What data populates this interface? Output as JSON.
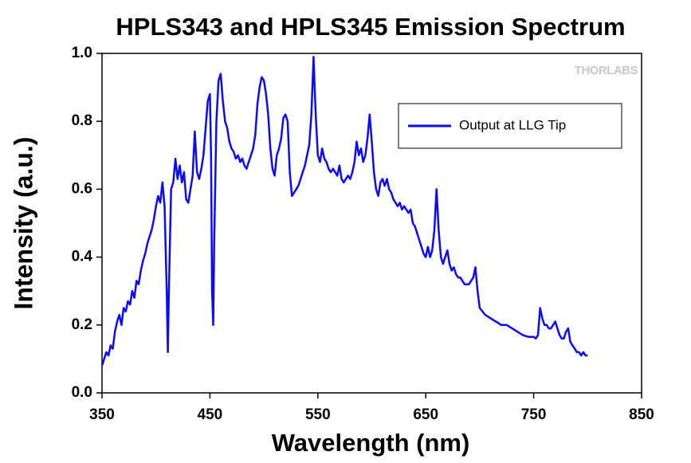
{
  "chart_data": {
    "type": "line",
    "title": "HPLS343 and HPLS345 Emission Spectrum",
    "x_label": "Wavelength (nm)",
    "y_label": "Intensity (a.u.)",
    "annotation": "THORLABS",
    "legend_position": "upper right",
    "xlim": [
      350,
      850
    ],
    "xticks": [
      350,
      450,
      550,
      650,
      750,
      850
    ],
    "ylim": [
      0,
      1
    ],
    "yticks": [
      {
        "value": 0,
        "label": "0.0"
      },
      0.2,
      0.4,
      0.6,
      0.8,
      {
        "value": 1,
        "label": "1.0"
      }
    ],
    "x": [
      350,
      352,
      354,
      356,
      358,
      360,
      362,
      364,
      366,
      368,
      370,
      372,
      374,
      376,
      378,
      380,
      382,
      384,
      386,
      388,
      390,
      392,
      394,
      396,
      398,
      400,
      402,
      404,
      406,
      408,
      410,
      411,
      412,
      414,
      416,
      418,
      420,
      422,
      424,
      426,
      428,
      430,
      432,
      434,
      436,
      438,
      440,
      442,
      444,
      446,
      448,
      450,
      451,
      452,
      453,
      454,
      456,
      458,
      460,
      462,
      464,
      466,
      468,
      470,
      472,
      474,
      476,
      478,
      480,
      482,
      484,
      486,
      488,
      490,
      492,
      494,
      496,
      498,
      500,
      502,
      504,
      506,
      508,
      510,
      512,
      514,
      516,
      518,
      520,
      522,
      524,
      526,
      528,
      530,
      532,
      534,
      536,
      538,
      540,
      542,
      544,
      546,
      548,
      550,
      552,
      554,
      556,
      558,
      560,
      562,
      564,
      566,
      568,
      570,
      572,
      574,
      576,
      578,
      580,
      582,
      584,
      586,
      588,
      590,
      592,
      594,
      596,
      598,
      600,
      602,
      604,
      606,
      608,
      610,
      612,
      614,
      616,
      618,
      620,
      622,
      624,
      626,
      628,
      630,
      632,
      634,
      636,
      638,
      640,
      642,
      644,
      646,
      648,
      650,
      652,
      654,
      656,
      658,
      660,
      662,
      664,
      666,
      668,
      670,
      672,
      674,
      676,
      678,
      680,
      682,
      684,
      686,
      688,
      690,
      692,
      694,
      696,
      698,
      700,
      705,
      710,
      715,
      720,
      725,
      730,
      735,
      740,
      745,
      750,
      752,
      754,
      756,
      758,
      760,
      762,
      764,
      766,
      768,
      770,
      772,
      774,
      776,
      778,
      780,
      782,
      784,
      786,
      788,
      790,
      792,
      794,
      796,
      798,
      800
    ],
    "series": [
      {
        "name": "Output at LLG Tip",
        "color": "#0a0aff",
        "values": [
          0.08,
          0.1,
          0.12,
          0.11,
          0.14,
          0.13,
          0.18,
          0.21,
          0.23,
          0.2,
          0.25,
          0.24,
          0.27,
          0.26,
          0.3,
          0.28,
          0.33,
          0.32,
          0.36,
          0.39,
          0.41,
          0.44,
          0.46,
          0.48,
          0.51,
          0.55,
          0.58,
          0.56,
          0.62,
          0.55,
          0.3,
          0.12,
          0.3,
          0.6,
          0.62,
          0.69,
          0.63,
          0.67,
          0.62,
          0.65,
          0.57,
          0.56,
          0.6,
          0.64,
          0.77,
          0.65,
          0.63,
          0.66,
          0.7,
          0.78,
          0.86,
          0.88,
          0.7,
          0.3,
          0.2,
          0.45,
          0.8,
          0.92,
          0.94,
          0.86,
          0.8,
          0.78,
          0.74,
          0.72,
          0.71,
          0.69,
          0.7,
          0.68,
          0.69,
          0.67,
          0.66,
          0.68,
          0.7,
          0.72,
          0.76,
          0.85,
          0.9,
          0.93,
          0.92,
          0.88,
          0.82,
          0.72,
          0.66,
          0.64,
          0.7,
          0.72,
          0.75,
          0.81,
          0.82,
          0.8,
          0.65,
          0.58,
          0.59,
          0.6,
          0.61,
          0.63,
          0.65,
          0.67,
          0.7,
          0.73,
          0.82,
          0.99,
          0.82,
          0.7,
          0.68,
          0.72,
          0.69,
          0.68,
          0.66,
          0.65,
          0.66,
          0.65,
          0.64,
          0.67,
          0.63,
          0.62,
          0.63,
          0.64,
          0.63,
          0.65,
          0.68,
          0.74,
          0.7,
          0.72,
          0.68,
          0.7,
          0.75,
          0.82,
          0.74,
          0.65,
          0.6,
          0.58,
          0.62,
          0.63,
          0.61,
          0.63,
          0.6,
          0.59,
          0.57,
          0.56,
          0.55,
          0.56,
          0.54,
          0.55,
          0.54,
          0.53,
          0.54,
          0.5,
          0.49,
          0.47,
          0.45,
          0.43,
          0.41,
          0.4,
          0.43,
          0.4,
          0.42,
          0.48,
          0.6,
          0.48,
          0.4,
          0.38,
          0.4,
          0.42,
          0.38,
          0.36,
          0.37,
          0.35,
          0.34,
          0.34,
          0.33,
          0.32,
          0.32,
          0.32,
          0.33,
          0.34,
          0.37,
          0.3,
          0.25,
          0.23,
          0.22,
          0.21,
          0.2,
          0.2,
          0.19,
          0.18,
          0.17,
          0.165,
          0.165,
          0.16,
          0.17,
          0.25,
          0.22,
          0.2,
          0.2,
          0.19,
          0.19,
          0.2,
          0.21,
          0.19,
          0.17,
          0.16,
          0.16,
          0.18,
          0.19,
          0.15,
          0.14,
          0.13,
          0.12,
          0.12,
          0.11,
          0.12,
          0.11,
          0.11
        ]
      }
    ]
  }
}
